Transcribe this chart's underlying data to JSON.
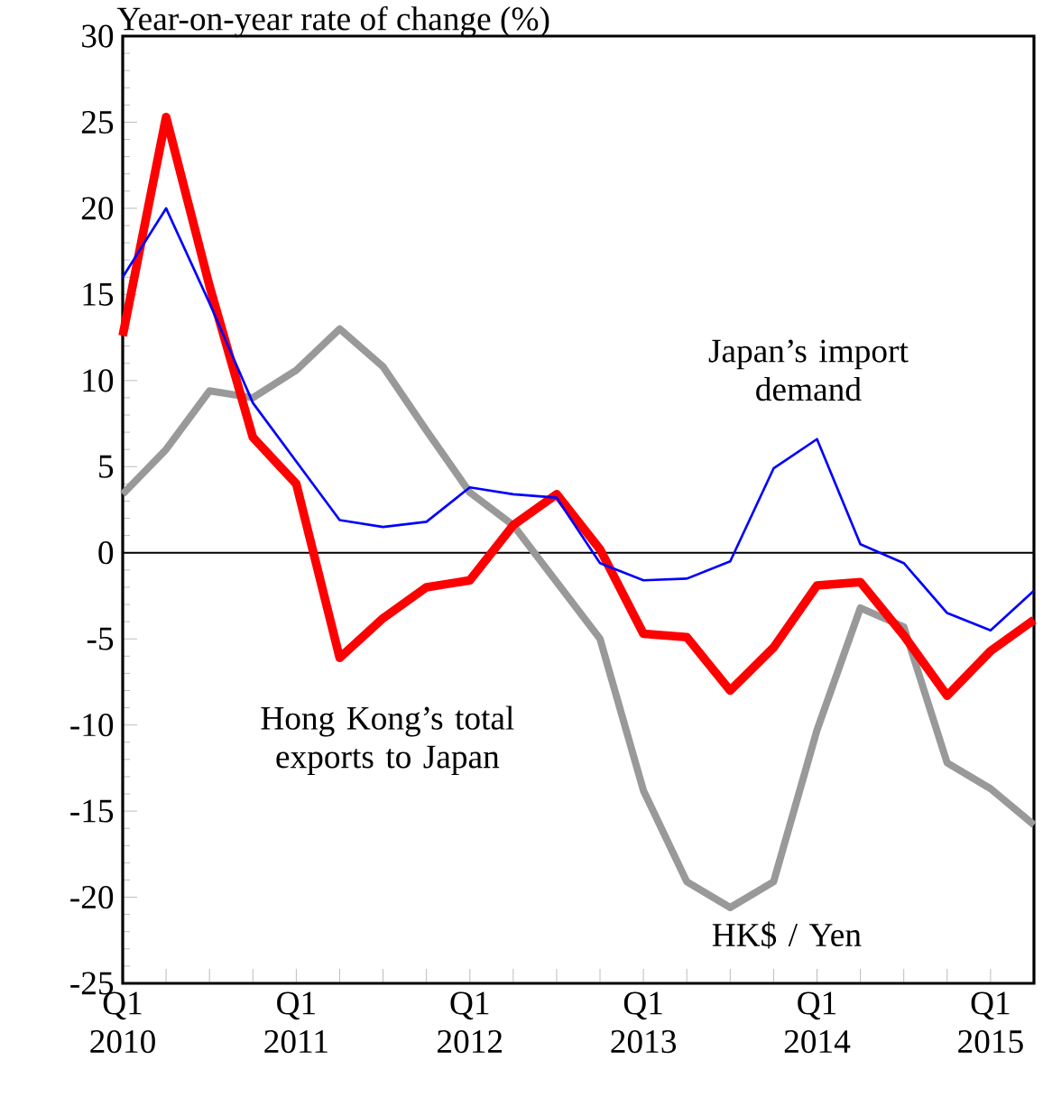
{
  "chart_data": {
    "type": "line",
    "ylabel": "Year-on-year rate of change (%)",
    "categories": [
      "Q1 2010",
      null,
      null,
      null,
      "Q1 2011",
      null,
      null,
      null,
      "Q1 2012",
      null,
      null,
      null,
      "Q1 2013",
      null,
      null,
      null,
      "Q1 2014",
      null,
      null,
      null,
      "Q1 2015",
      null
    ],
    "series": [
      {
        "name": "Japan’s import demand",
        "color": "#0000ff",
        "values": [
          16,
          20,
          14.5,
          8.7,
          5.3,
          1.9,
          1.5,
          1.8,
          3.8,
          3.4,
          3.2,
          -0.6,
          -1.6,
          -1.5,
          -0.5,
          4.9,
          6.6,
          0.5,
          -0.6,
          -3.5,
          -4.5,
          -2.2
        ]
      },
      {
        "name": "Hong Kong’s total exports to Japan",
        "color": "#ff0000",
        "values": [
          12.6,
          25.3,
          15.5,
          6.7,
          4.0,
          -6.1,
          -3.8,
          -2.0,
          -1.6,
          1.6,
          3.4,
          0.2,
          -4.7,
          -4.9,
          -8.0,
          -5.5,
          -1.9,
          -1.7,
          -4.8,
          -8.3,
          -5.7,
          -3.9
        ]
      },
      {
        "name": "HK$ / Yen",
        "color": "#999999",
        "values": [
          3.4,
          6.0,
          9.4,
          9.0,
          10.6,
          13.0,
          10.8,
          7.1,
          3.5,
          1.6,
          -1.7,
          -5.0,
          -13.8,
          -19.1,
          -20.6,
          -19.1,
          -10.3,
          -3.2,
          -4.3,
          -12.2,
          -13.7,
          -15.8
        ]
      }
    ],
    "ylim": [
      -25,
      30
    ],
    "yticks": [
      -25,
      -20,
      -15,
      -10,
      -5,
      0,
      5,
      10,
      15,
      20,
      25,
      30
    ],
    "ref_lines": [
      {
        "axis": "y",
        "value": 0,
        "color": "#000000"
      }
    ]
  }
}
